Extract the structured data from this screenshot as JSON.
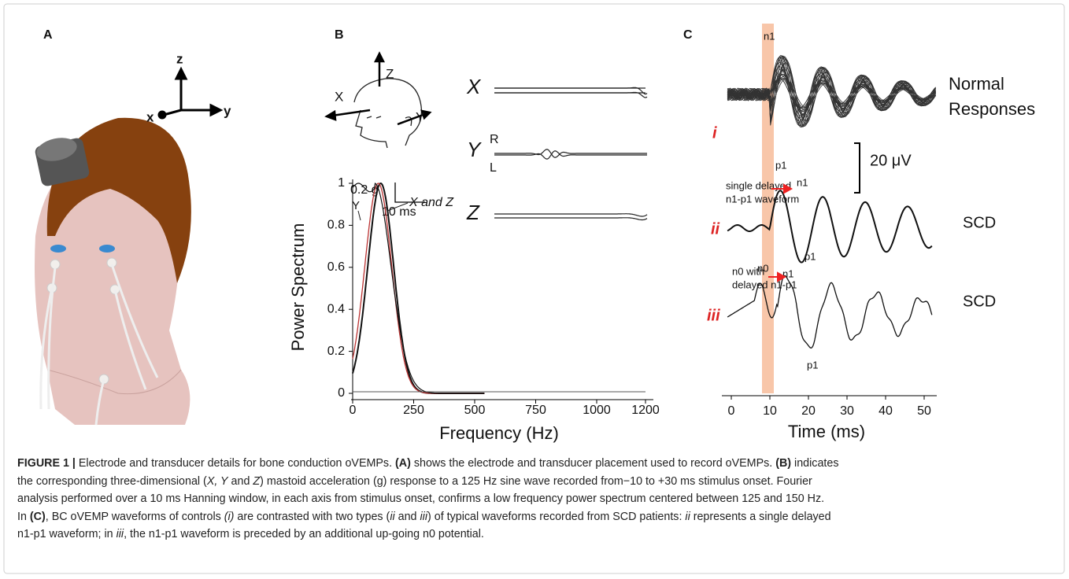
{
  "panel_a": {
    "label": "A",
    "axes": [
      "z",
      "x",
      "y"
    ]
  },
  "panel_b": {
    "label": "B",
    "head_axes": [
      "Z",
      "X",
      "Y"
    ],
    "trace_labels": [
      "X",
      "Y",
      "Z"
    ],
    "side_labels": [
      "R",
      "L"
    ],
    "scale": [
      "0.2 g",
      "10 ms"
    ],
    "spectrum": {
      "ylabel": "Power Spectrum",
      "xlabel": "Frequency (Hz)",
      "xlim": [
        0,
        1200
      ],
      "ylim": [
        0,
        1
      ],
      "xticks": [
        0,
        250,
        500,
        750,
        1000,
        1200
      ],
      "yticks": [
        0,
        0.2,
        0.4,
        0.6,
        0.8,
        1
      ],
      "annotations": [
        "Y",
        "X and Z"
      ]
    }
  },
  "panel_c": {
    "label": "C",
    "top_n1": "n1",
    "normal": [
      "Normal",
      "Responses"
    ],
    "roman": [
      "i",
      "ii",
      "iii"
    ],
    "p1_i": "p1",
    "scale": "20 μV",
    "single": [
      "single delayed",
      "n1-p1 waveform"
    ],
    "n1_ii": "n1",
    "scd": [
      "SCD",
      "SCD"
    ],
    "p1_ii": "p1",
    "n0_note": [
      "n0 with",
      "delayed n1-p1"
    ],
    "n0": "n0",
    "n1_iii": "n1",
    "p1_iii": "p1",
    "xlabel": "Time (ms)",
    "xlim": [
      0,
      50
    ],
    "xticks": [
      0,
      10,
      20,
      30,
      40,
      50
    ]
  },
  "caption": {
    "lines": [
      [
        {
          "text": "FIGURE 1 |",
          "style": "b"
        },
        {
          "text": " Electrode and transducer details for bone conduction oVEMPs. "
        },
        {
          "text": "(A)",
          "style": "b"
        },
        {
          "text": " shows the electrode and transducer placement used to record oVEMPs. "
        },
        {
          "text": "(B)",
          "style": "b"
        },
        {
          "text": " indicates"
        }
      ],
      [
        {
          "text": "the corresponding three-dimensional ("
        },
        {
          "text": "X, Y",
          "style": "i"
        },
        {
          "text": " and "
        },
        {
          "text": "Z",
          "style": "i"
        },
        {
          "text": ") mastoid acceleration (g) response to a 125 Hz sine wave recorded from−10 to +30 ms stimulus onset. Fourier"
        }
      ],
      [
        {
          "text": "analysis performed over a 10 ms Hanning window, in each axis from stimulus onset, confirms a low frequency power spectrum centered between 125 and 150 Hz."
        }
      ],
      [
        {
          "text": "In "
        },
        {
          "text": "(C)",
          "style": "b"
        },
        {
          "text": ", BC oVEMP waveforms of controls "
        },
        {
          "text": "(i)",
          "style": "i"
        },
        {
          "text": " are contrasted with two types ("
        },
        {
          "text": "ii",
          "style": "i"
        },
        {
          "text": " and "
        },
        {
          "text": "iii",
          "style": "i"
        },
        {
          "text": ") of typical waveforms recorded from SCD patients: "
        },
        {
          "text": "ii",
          "style": "i"
        },
        {
          "text": " represents a single delayed"
        }
      ],
      [
        {
          "text": "n1-p1 waveform; in "
        },
        {
          "text": "iii",
          "style": "i"
        },
        {
          "text": ", the n1-p1 waveform is preceded by an additional up-going n0 potential."
        }
      ]
    ]
  }
}
